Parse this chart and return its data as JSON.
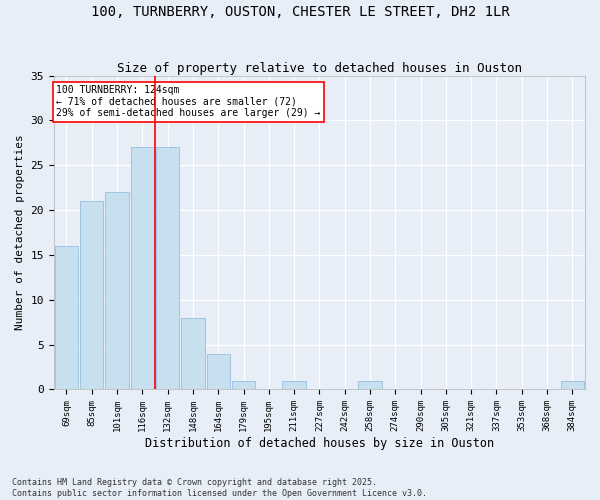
{
  "title_line1": "100, TURNBERRY, OUSTON, CHESTER LE STREET, DH2 1LR",
  "title_line2": "Size of property relative to detached houses in Ouston",
  "xlabel": "Distribution of detached houses by size in Ouston",
  "ylabel": "Number of detached properties",
  "bar_color": "#c8dff0",
  "bar_edge_color": "#a0c4e0",
  "categories": [
    "69sqm",
    "85sqm",
    "101sqm",
    "116sqm",
    "132sqm",
    "148sqm",
    "164sqm",
    "179sqm",
    "195sqm",
    "211sqm",
    "227sqm",
    "242sqm",
    "258sqm",
    "274sqm",
    "290sqm",
    "305sqm",
    "321sqm",
    "337sqm",
    "353sqm",
    "368sqm",
    "384sqm"
  ],
  "values": [
    16,
    21,
    22,
    27,
    27,
    8,
    4,
    1,
    0,
    1,
    0,
    0,
    1,
    0,
    0,
    0,
    0,
    0,
    0,
    0,
    1
  ],
  "ylim": [
    0,
    35
  ],
  "yticks": [
    0,
    5,
    10,
    15,
    20,
    25,
    30,
    35
  ],
  "annotation_text": "100 TURNBERRY: 124sqm\n← 71% of detached houses are smaller (72)\n29% of semi-detached houses are larger (29) →",
  "red_line_x": 3.5,
  "background_color": "#e8eef8",
  "plot_bg_color": "#e8eef8",
  "grid_color": "#ffffff",
  "footer_text": "Contains HM Land Registry data © Crown copyright and database right 2025.\nContains public sector information licensed under the Open Government Licence v3.0."
}
